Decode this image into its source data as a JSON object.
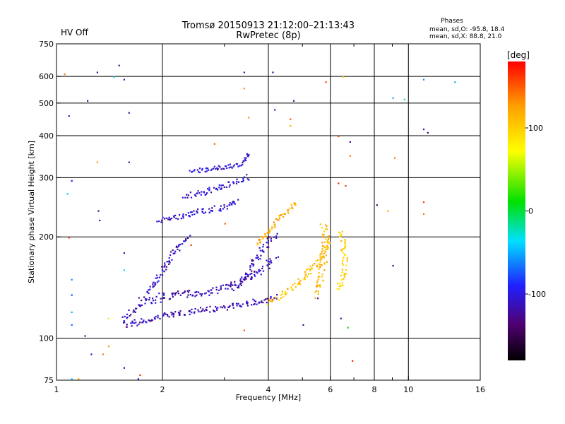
{
  "header": {
    "status": "HV Off",
    "status_color": "#e00000",
    "title": "Tromsø 20150913 21:12:00–21:13:43",
    "subtitle": "RwPretec (8p)",
    "stats_title": "Phases",
    "stats_o": "mean, sd,O: -95.8, 18.4",
    "stats_x": "mean, sd,X:  88.8, 21.0"
  },
  "colorbar": {
    "label": "[deg]",
    "min": -180,
    "max": 180,
    "ticks": [
      {
        "value": 100,
        "label": "100"
      },
      {
        "value": 0,
        "label": "0"
      },
      {
        "value": -100,
        "label": "-100"
      }
    ]
  },
  "chart_data": {
    "type": "scatter",
    "title": "Tromsø 20150913 21:12:00–21:13:43",
    "subtitle": "RwPretec (8p)",
    "xlabel": "Frequency [MHz]",
    "ylabel": "Stationary phase Virtual Height [km]",
    "x_scale": "log",
    "y_scale": "log",
    "xlim": [
      1,
      16
    ],
    "ylim": [
      75,
      750
    ],
    "x_ticks": [
      1,
      2,
      4,
      6,
      8,
      10,
      16
    ],
    "x_minor_ticks": [
      3,
      5,
      7,
      9
    ],
    "y_ticks": [
      75,
      100,
      200,
      300,
      400,
      500,
      600,
      750
    ],
    "x_gridlines": [
      2,
      4,
      6,
      8,
      10
    ],
    "y_gridlines": [
      100,
      200,
      300,
      400,
      500,
      600
    ],
    "color_variable": "phase [deg]",
    "traces": [
      {
        "name": "",
        "phase": -115,
        "spread": 4,
        "points": [
          [
            1.55,
            110
          ],
          [
            1.7,
            112
          ],
          [
            1.9,
            116
          ],
          [
            2.1,
            118
          ],
          [
            2.5,
            121
          ],
          [
            3.0,
            124
          ],
          [
            3.5,
            128
          ],
          [
            3.9,
            131
          ],
          [
            4.2,
            134
          ]
        ]
      },
      {
        "name": "",
        "phase": -115,
        "spread": 5,
        "points": [
          [
            1.85,
            128
          ],
          [
            2.0,
            134
          ],
          [
            2.3,
            136
          ],
          [
            2.7,
            138
          ],
          [
            3.0,
            142
          ],
          [
            3.4,
            150
          ],
          [
            3.7,
            158
          ],
          [
            4.0,
            168
          ],
          [
            4.2,
            175
          ]
        ]
      },
      {
        "name": "",
        "phase": -110,
        "spread": 5,
        "points": [
          [
            1.55,
            115
          ],
          [
            1.7,
            125
          ],
          [
            1.8,
            135
          ],
          [
            1.9,
            148
          ],
          [
            2.0,
            160
          ],
          [
            2.1,
            175
          ],
          [
            2.2,
            190
          ],
          [
            2.35,
            200
          ]
        ]
      },
      {
        "name": "",
        "phase": -110,
        "spread": 5,
        "points": [
          [
            3.2,
            140
          ],
          [
            3.4,
            152
          ],
          [
            3.6,
            168
          ],
          [
            3.8,
            182
          ],
          [
            4.0,
            195
          ],
          [
            4.2,
            205
          ]
        ]
      },
      {
        "name": "",
        "phase": -105,
        "spread": 4,
        "points": [
          [
            1.95,
            225
          ],
          [
            2.2,
            232
          ],
          [
            2.5,
            238
          ],
          [
            2.9,
            245
          ],
          [
            3.3,
            255
          ]
        ]
      },
      {
        "name": "",
        "phase": -105,
        "spread": 4,
        "points": [
          [
            2.3,
            265
          ],
          [
            2.7,
            275
          ],
          [
            3.0,
            285
          ],
          [
            3.3,
            295
          ],
          [
            3.5,
            305
          ]
        ]
      },
      {
        "name": "",
        "phase": -105,
        "spread": 3,
        "points": [
          [
            2.4,
            315
          ],
          [
            2.6,
            318
          ],
          [
            2.8,
            322
          ],
          [
            3.1,
            326
          ],
          [
            3.3,
            330
          ],
          [
            3.45,
            340
          ],
          [
            3.5,
            360
          ]
        ]
      },
      {
        "name": "",
        "phase": 108,
        "spread": 4,
        "points": [
          [
            4.0,
            128
          ],
          [
            4.3,
            133
          ],
          [
            4.6,
            140
          ],
          [
            4.9,
            148
          ],
          [
            5.2,
            158
          ],
          [
            5.5,
            170
          ],
          [
            5.8,
            185
          ],
          [
            5.9,
            200
          ]
        ]
      },
      {
        "name": "",
        "phase": 112,
        "spread": 5,
        "points": [
          [
            5.4,
            135
          ],
          [
            5.6,
            150
          ],
          [
            5.7,
            168
          ],
          [
            5.75,
            185
          ],
          [
            5.8,
            205
          ],
          [
            5.7,
            220
          ]
        ]
      },
      {
        "name": "",
        "phase": 100,
        "spread": 4,
        "points": [
          [
            6.3,
            140
          ],
          [
            6.5,
            155
          ],
          [
            6.6,
            170
          ],
          [
            6.5,
            190
          ],
          [
            6.4,
            210
          ]
        ]
      },
      {
        "name": "",
        "phase": 115,
        "spread": 3,
        "points": [
          [
            3.7,
            190
          ],
          [
            4.0,
            210
          ],
          [
            4.3,
            230
          ],
          [
            4.6,
            245
          ],
          [
            4.8,
            255
          ]
        ]
      }
    ],
    "sparse_points": [
      {
        "x": 1.05,
        "y": 612,
        "phase": 140
      },
      {
        "x": 1.3,
        "y": 620,
        "phase": -120
      },
      {
        "x": 1.5,
        "y": 650,
        "phase": -110
      },
      {
        "x": 1.55,
        "y": 590,
        "phase": -100
      },
      {
        "x": 1.22,
        "y": 510,
        "phase": -130
      },
      {
        "x": 1.6,
        "y": 470,
        "phase": -120
      },
      {
        "x": 1.08,
        "y": 460,
        "phase": -110
      },
      {
        "x": 1.45,
        "y": 600,
        "phase": -30
      },
      {
        "x": 3.4,
        "y": 620,
        "phase": -110
      },
      {
        "x": 4.1,
        "y": 620,
        "phase": -120
      },
      {
        "x": 4.7,
        "y": 510,
        "phase": -130
      },
      {
        "x": 5.8,
        "y": 580,
        "phase": 160
      },
      {
        "x": 6.5,
        "y": 600,
        "phase": 90
      },
      {
        "x": 9.0,
        "y": 520,
        "phase": -50
      },
      {
        "x": 9.7,
        "y": 515,
        "phase": -20
      },
      {
        "x": 11.0,
        "y": 590,
        "phase": -60
      },
      {
        "x": 13.5,
        "y": 580,
        "phase": -50
      },
      {
        "x": 11.0,
        "y": 420,
        "phase": -120
      },
      {
        "x": 11.3,
        "y": 410,
        "phase": -140
      },
      {
        "x": 4.6,
        "y": 450,
        "phase": 150
      },
      {
        "x": 4.6,
        "y": 430,
        "phase": 120
      },
      {
        "x": 4.15,
        "y": 480,
        "phase": -100
      },
      {
        "x": 3.5,
        "y": 455,
        "phase": 130
      },
      {
        "x": 3.4,
        "y": 555,
        "phase": 130
      },
      {
        "x": 6.3,
        "y": 400,
        "phase": 160
      },
      {
        "x": 6.8,
        "y": 385,
        "phase": -120
      },
      {
        "x": 6.8,
        "y": 350,
        "phase": 140
      },
      {
        "x": 2.8,
        "y": 380,
        "phase": 150
      },
      {
        "x": 1.3,
        "y": 335,
        "phase": 130
      },
      {
        "x": 1.6,
        "y": 335,
        "phase": -120
      },
      {
        "x": 1.1,
        "y": 295,
        "phase": -100
      },
      {
        "x": 1.07,
        "y": 270,
        "phase": -40
      },
      {
        "x": 1.31,
        "y": 240,
        "phase": -130
      },
      {
        "x": 1.32,
        "y": 225,
        "phase": -110
      },
      {
        "x": 6.3,
        "y": 290,
        "phase": 170
      },
      {
        "x": 6.6,
        "y": 285,
        "phase": 160
      },
      {
        "x": 8.1,
        "y": 250,
        "phase": -140
      },
      {
        "x": 8.7,
        "y": 240,
        "phase": 120
      },
      {
        "x": 9.1,
        "y": 345,
        "phase": 140
      },
      {
        "x": 11.0,
        "y": 255,
        "phase": 160
      },
      {
        "x": 11.0,
        "y": 235,
        "phase": 140
      },
      {
        "x": 1.08,
        "y": 200,
        "phase": 170
      },
      {
        "x": 1.55,
        "y": 180,
        "phase": -110
      },
      {
        "x": 1.55,
        "y": 160,
        "phase": -40
      },
      {
        "x": 1.1,
        "y": 150,
        "phase": -60
      },
      {
        "x": 1.1,
        "y": 135,
        "phase": -80
      },
      {
        "x": 1.1,
        "y": 120,
        "phase": -50
      },
      {
        "x": 1.1,
        "y": 110,
        "phase": -70
      },
      {
        "x": 1.2,
        "y": 102,
        "phase": -120
      },
      {
        "x": 1.4,
        "y": 115,
        "phase": 60
      },
      {
        "x": 1.35,
        "y": 90,
        "phase": 140
      },
      {
        "x": 1.25,
        "y": 90,
        "phase": -100
      },
      {
        "x": 1.4,
        "y": 95,
        "phase": 130
      },
      {
        "x": 1.55,
        "y": 82,
        "phase": -120
      },
      {
        "x": 1.72,
        "y": 78,
        "phase": 170
      },
      {
        "x": 1.7,
        "y": 76,
        "phase": -100
      },
      {
        "x": 1.1,
        "y": 76,
        "phase": -40
      },
      {
        "x": 1.15,
        "y": 76,
        "phase": 120
      },
      {
        "x": 3.4,
        "y": 106,
        "phase": 150
      },
      {
        "x": 5.0,
        "y": 110,
        "phase": -120
      },
      {
        "x": 6.4,
        "y": 115,
        "phase": -120
      },
      {
        "x": 6.7,
        "y": 108,
        "phase": 10
      },
      {
        "x": 6.9,
        "y": 86,
        "phase": 170
      },
      {
        "x": 9.0,
        "y": 165,
        "phase": -140
      },
      {
        "x": 5.5,
        "y": 132,
        "phase": -110
      },
      {
        "x": 2.4,
        "y": 190,
        "phase": 160
      },
      {
        "x": 3.0,
        "y": 220,
        "phase": 150
      }
    ]
  }
}
